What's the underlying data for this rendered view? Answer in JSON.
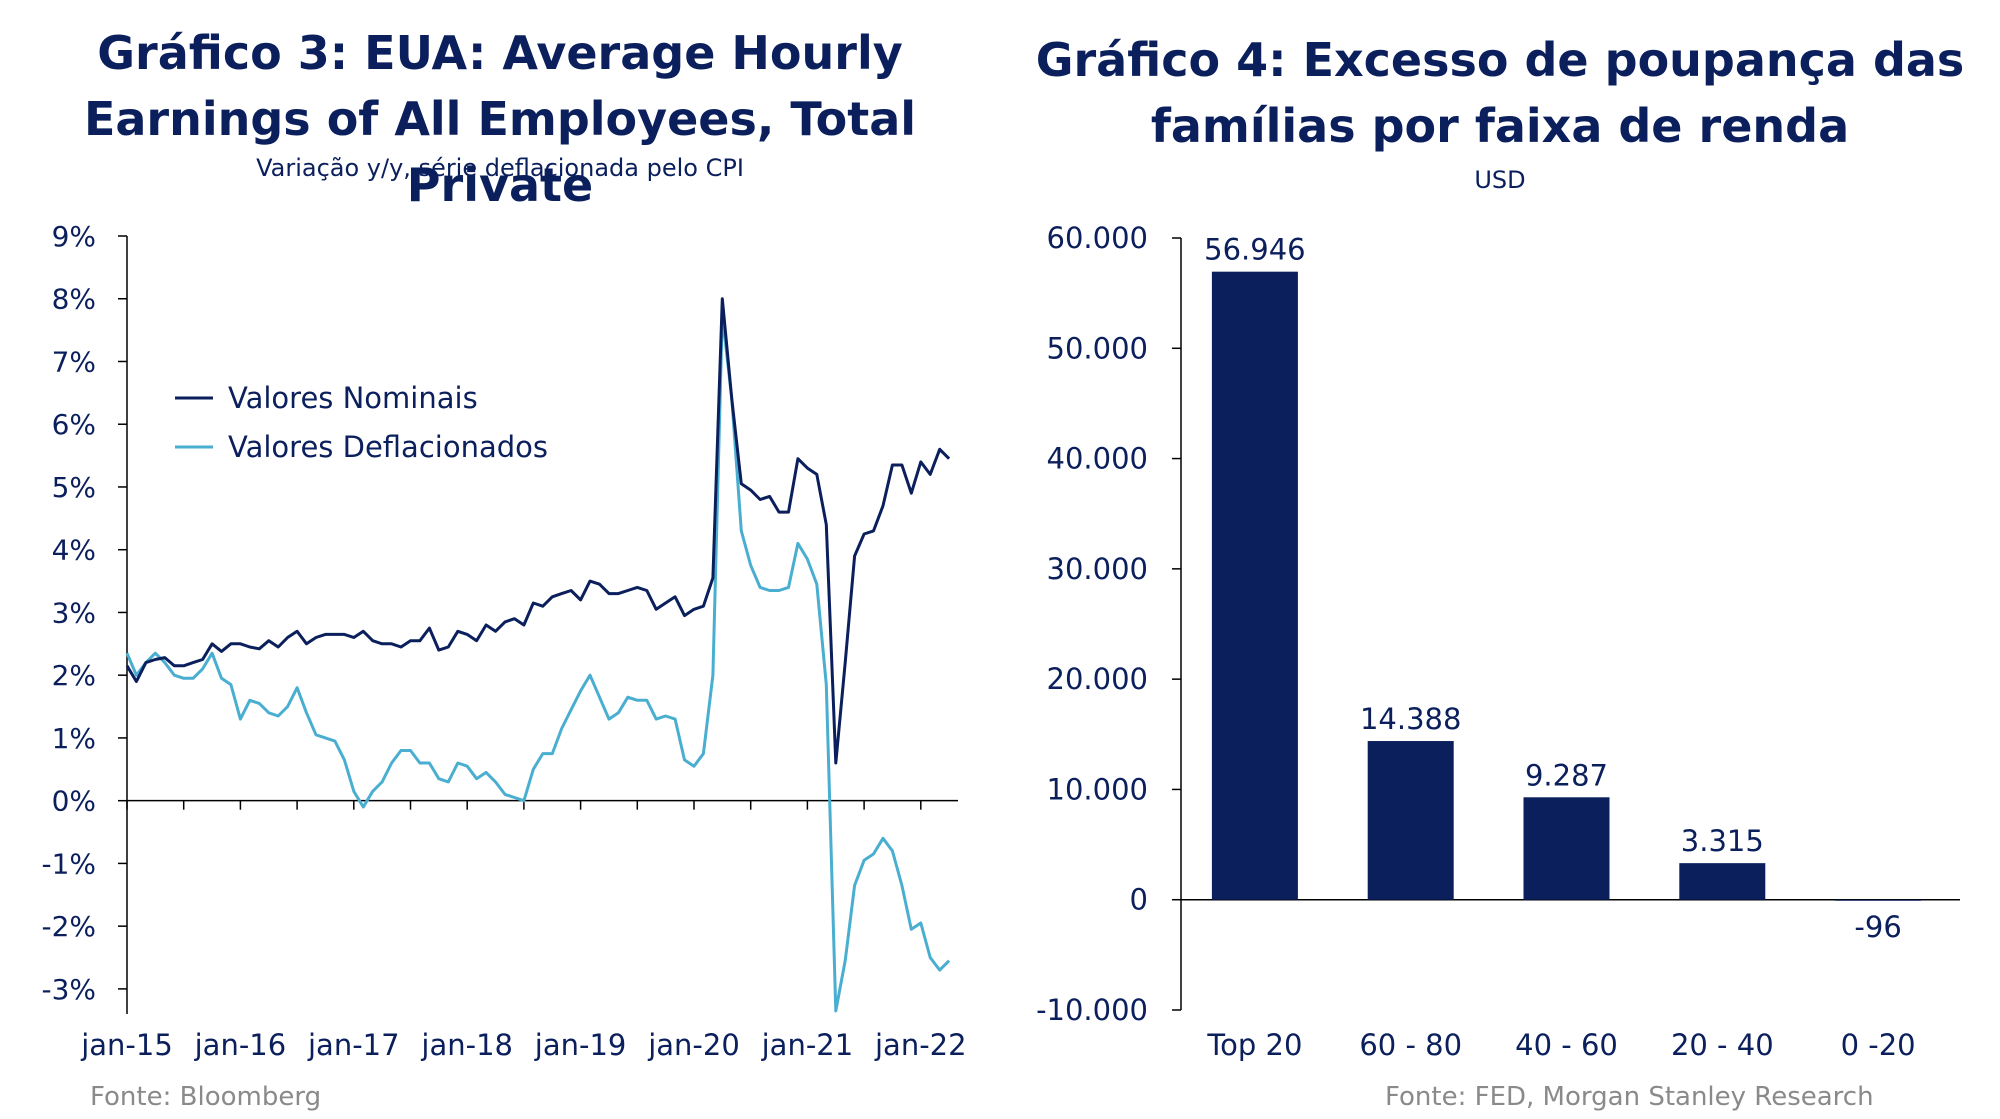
{
  "left_chart": {
    "title_line1": "Gráfico 3: EUA: Average Hourly",
    "title_line2": "Earnings of All Employees, Total Private",
    "subtitle": "Variação y/y, série deflacionada pelo CPI",
    "source": "Fonte:  Bloomberg"
  },
  "right_chart": {
    "title_line1": "Gráfico 4: Excesso de poupança das",
    "title_line2": "famílias por faixa de renda",
    "subtitle": "USD",
    "source": "Fonte:  FED, Morgan Stanley Research"
  },
  "colors": {
    "navy": "#0a1f5c",
    "light_blue": "#4aaed0",
    "bar": "#0a1f5c"
  },
  "chart_data": [
    {
      "type": "line",
      "title": "Gráfico 3: EUA: Average Hourly Earnings of All Employees, Total Private",
      "subtitle": "Variação y/y, série deflacionada pelo CPI",
      "x_start": "2015-01",
      "x_frequency": "monthly",
      "x_tick_labels": [
        "jan-15",
        "jan-16",
        "jan-17",
        "jan-18",
        "jan-19",
        "jan-20",
        "jan-21",
        "jan-22"
      ],
      "y_tick_labels": [
        "9%",
        "8%",
        "7%",
        "6%",
        "5%",
        "4%",
        "3%",
        "2%",
        "1%",
        "0%",
        "-1%",
        "-2%",
        "-3%"
      ],
      "ylim": [
        -3.4,
        9
      ],
      "y_ticks": [
        9,
        8,
        7,
        6,
        5,
        4,
        3,
        2,
        1,
        0,
        -1,
        -2,
        -3
      ],
      "legend_position": "top-left",
      "grid": false,
      "series": [
        {
          "name": "Valores Nominais",
          "color": "#0a1f5c",
          "values": [
            2.15,
            1.9,
            2.2,
            2.25,
            2.28,
            2.15,
            2.15,
            2.2,
            2.25,
            2.5,
            2.38,
            2.5,
            2.5,
            2.45,
            2.42,
            2.55,
            2.45,
            2.6,
            2.7,
            2.5,
            2.6,
            2.65,
            2.65,
            2.65,
            2.6,
            2.7,
            2.55,
            2.5,
            2.5,
            2.45,
            2.55,
            2.55,
            2.75,
            2.4,
            2.45,
            2.7,
            2.65,
            2.55,
            2.8,
            2.7,
            2.85,
            2.9,
            2.8,
            3.15,
            3.1,
            3.25,
            3.3,
            3.35,
            3.2,
            3.5,
            3.45,
            3.3,
            3.3,
            3.35,
            3.4,
            3.35,
            3.05,
            3.15,
            3.25,
            2.95,
            3.05,
            3.1,
            3.55,
            8.0,
            6.4,
            5.05,
            4.95,
            4.8,
            4.85,
            4.6,
            4.6,
            5.45,
            5.3,
            5.2,
            4.4,
            0.6,
            2.2,
            3.9,
            4.25,
            4.3,
            4.7,
            5.35,
            5.35,
            4.9,
            5.4,
            5.2,
            5.6,
            5.45
          ]
        },
        {
          "name": "Valores Deflacionados",
          "color": "#4aaed0",
          "values": [
            2.35,
            2.0,
            2.2,
            2.35,
            2.2,
            2.0,
            1.95,
            1.95,
            2.1,
            2.35,
            1.95,
            1.85,
            1.3,
            1.6,
            1.55,
            1.4,
            1.35,
            1.5,
            1.8,
            1.4,
            1.05,
            1.0,
            0.95,
            0.65,
            0.15,
            -0.1,
            0.15,
            0.3,
            0.6,
            0.8,
            0.8,
            0.6,
            0.6,
            0.35,
            0.3,
            0.6,
            0.55,
            0.35,
            0.45,
            0.3,
            0.1,
            0.05,
            0.0,
            0.5,
            0.75,
            0.75,
            1.15,
            1.45,
            1.75,
            2.0,
            1.65,
            1.3,
            1.4,
            1.65,
            1.6,
            1.6,
            1.3,
            1.35,
            1.3,
            0.65,
            0.55,
            0.75,
            2.0,
            7.75,
            6.4,
            4.3,
            3.75,
            3.4,
            3.35,
            3.35,
            3.4,
            4.1,
            3.85,
            3.45,
            1.85,
            -3.35,
            -2.55,
            -1.35,
            -0.95,
            -0.85,
            -0.6,
            -0.8,
            -1.35,
            -2.05,
            -1.95,
            -2.5,
            -2.7,
            -2.55
          ]
        }
      ]
    },
    {
      "type": "bar",
      "title": "Gráfico 4: Excesso de poupança das famílias por faixa de renda",
      "ylabel": "USD",
      "categories": [
        "Top 20",
        "60 - 80",
        "40 - 60",
        "20 - 40",
        "0 -20"
      ],
      "values": [
        56946,
        14388,
        9287,
        3315,
        -96
      ],
      "data_labels": [
        "56.946",
        "14.388",
        "9.287",
        "3.315",
        "-96"
      ],
      "ylim": [
        -10000,
        60000
      ],
      "y_ticks": [
        60000,
        50000,
        40000,
        30000,
        20000,
        10000,
        0,
        -10000
      ],
      "y_tick_labels": [
        "60.000",
        "50.000",
        "40.000",
        "30.000",
        "20.000",
        "10.000",
        "0",
        "-10.000"
      ],
      "grid": false
    }
  ]
}
